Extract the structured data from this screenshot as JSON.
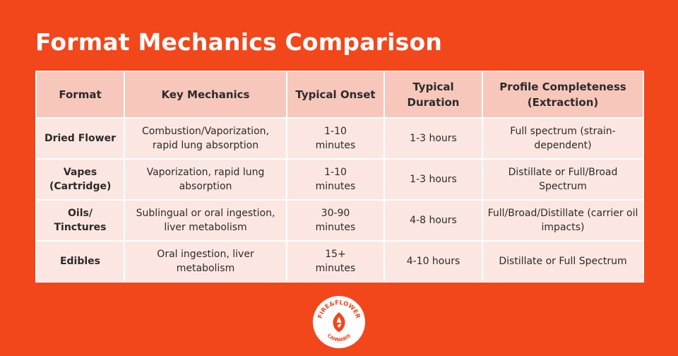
{
  "title": "Format Mechanics Comparison",
  "table": {
    "headers": [
      "Format",
      "Key Mechanics",
      "Typical Onset",
      "Typical Duration",
      "Profile Completeness (Extraction)"
    ],
    "rows": [
      [
        "Dried Flower",
        "Combustion/Vaporization, rapid lung absorption",
        "1-10 minutes",
        "1-3 hours",
        "Full spectrum (strain-dependent)"
      ],
      [
        "Vapes (Cartridge)",
        "Vaporization, rapid lung absorption",
        "1-10 minutes",
        "1-3 hours",
        "Distillate or Full/Broad Spectrum"
      ],
      [
        "Oils/ Tinctures",
        "Sublingual or oral ingestion, liver metabolism",
        "30-90 minutes",
        "4-8 hours",
        "Full/Broad/Distillate (carrier oil impacts)"
      ],
      [
        "Edibles",
        "Oral ingestion, liver metabolism",
        "15+ minutes",
        "4-10 hours",
        "Distillate or Full Spectrum"
      ]
    ]
  },
  "logo": {
    "top_text": "FIRE&FLOWER",
    "bottom_text": "CANNABIS",
    "icon": "flame-flower-icon"
  },
  "colors": {
    "background": "#F2461B",
    "header_fill": "#F7C7BB",
    "cell_fill": "#FCE6E1",
    "text": "#2b2b2b"
  }
}
